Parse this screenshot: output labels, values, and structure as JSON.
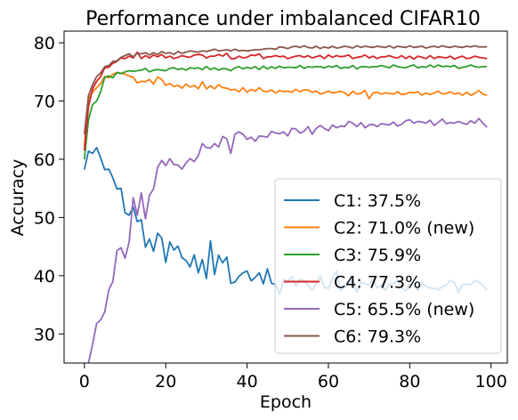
{
  "chart_data": {
    "type": "line",
    "title": "Performance under imbalanced CIFAR10",
    "xlabel": "Epoch",
    "ylabel": "Accuracy",
    "xlim": [
      -5,
      104
    ],
    "ylim": [
      25,
      82
    ],
    "xticks": [
      0,
      20,
      40,
      60,
      80,
      100
    ],
    "yticks": [
      30,
      40,
      50,
      60,
      70,
      80
    ],
    "grid": false,
    "legend_position": "lower-right",
    "x": [
      0,
      1,
      2,
      3,
      4,
      5,
      6,
      7,
      8,
      9,
      10,
      11,
      12,
      13,
      14,
      15,
      16,
      17,
      18,
      19,
      20,
      21,
      22,
      23,
      24,
      25,
      26,
      27,
      28,
      29,
      30,
      31,
      32,
      33,
      34,
      35,
      36,
      37,
      38,
      39,
      40,
      41,
      42,
      43,
      44,
      45,
      46,
      47,
      48,
      49,
      50,
      51,
      52,
      53,
      54,
      55,
      56,
      57,
      58,
      59,
      60,
      61,
      62,
      63,
      64,
      65,
      66,
      67,
      68,
      69,
      70,
      71,
      72,
      73,
      74,
      75,
      76,
      77,
      78,
      79,
      80,
      81,
      82,
      83,
      84,
      85,
      86,
      87,
      88,
      89,
      90,
      91,
      92,
      93,
      94,
      95,
      96,
      97,
      98,
      99
    ],
    "series": [
      {
        "name": "C1: 37.5%",
        "color": "#1f77b4",
        "values": [
          58.2,
          61.4,
          61.0,
          62.0,
          60.2,
          58.2,
          58.3,
          56.8,
          54.9,
          55.0,
          50.8,
          50.4,
          51.8,
          49.3,
          49.6,
          44.9,
          46.3,
          44.2,
          47.3,
          46.5,
          42.3,
          45.8,
          44.4,
          45.1,
          43.1,
          42.6,
          41.5,
          43.6,
          40.5,
          42.8,
          39.5,
          46.0,
          40.2,
          43.5,
          42.2,
          43.2,
          38.7,
          38.9,
          39.9,
          40.5,
          40.8,
          39.1,
          39.7,
          40.5,
          38.6,
          41.2,
          38.7,
          38.5,
          36.8,
          39.3,
          39.1,
          39.8,
          38.2,
          39.4,
          39.2,
          38.4,
          37.5,
          38.7,
          39.9,
          38.0,
          37.8,
          39.5,
          40.8,
          37.4,
          38.1,
          38.7,
          39.2,
          37.1,
          38.9,
          38.6,
          38.4,
          39.4,
          37.9,
          38.4,
          37.5,
          38.5,
          38.6,
          39.3,
          38.0,
          37.4,
          38.6,
          38.6,
          37.5,
          38.8,
          38.2,
          37.9,
          37.8,
          37.6,
          38.1,
          38.4,
          39.2,
          38.8,
          37.1,
          38.6,
          38.5,
          38.5,
          39.2,
          38.9,
          38.3,
          37.5
        ]
      },
      {
        "name": "C2: 71.0% (new)",
        "color": "#ff7f0e",
        "values": [
          62.2,
          70.4,
          71.5,
          72.3,
          73.0,
          74.2,
          74.0,
          74.6,
          74.9,
          74.8,
          74.6,
          74.3,
          74.1,
          73.1,
          73.4,
          73.3,
          73.7,
          72.9,
          74.1,
          73.7,
          72.7,
          73.0,
          72.5,
          72.7,
          72.2,
          72.9,
          72.4,
          72.7,
          72.1,
          73.3,
          72.1,
          72.6,
          72.1,
          72.8,
          72.3,
          72.2,
          71.9,
          72.0,
          71.6,
          72.3,
          71.5,
          72.0,
          71.7,
          72.3,
          71.7,
          71.6,
          71.9,
          71.4,
          71.8,
          71.6,
          71.7,
          71.5,
          72.0,
          71.6,
          71.9,
          71.9,
          71.5,
          71.7,
          71.2,
          71.4,
          71.7,
          71.4,
          71.5,
          71.7,
          71.4,
          70.9,
          71.7,
          71.2,
          71.3,
          71.8,
          70.4,
          71.4,
          71.5,
          71.2,
          71.4,
          71.3,
          71.2,
          71.6,
          71.1,
          71.2,
          71.5,
          71.4,
          71.6,
          71.0,
          71.4,
          71.1,
          71.4,
          71.7,
          71.2,
          71.3,
          71.6,
          71.2,
          71.4,
          71.0,
          71.5,
          71.0,
          71.3,
          71.8,
          71.2,
          71.0
        ]
      },
      {
        "name": "C3: 75.9%",
        "color": "#2ca02c",
        "values": [
          60.0,
          66.8,
          69.4,
          70.0,
          71.6,
          74.1,
          74.3,
          74.0,
          74.9,
          74.7,
          75.0,
          75.2,
          75.1,
          75.2,
          75.3,
          75.6,
          75.0,
          75.3,
          75.4,
          75.3,
          75.2,
          75.6,
          75.7,
          75.4,
          75.6,
          75.3,
          75.7,
          75.6,
          75.7,
          75.4,
          75.9,
          75.4,
          75.7,
          75.3,
          75.6,
          75.5,
          75.2,
          75.7,
          75.9,
          75.5,
          75.8,
          75.6,
          75.9,
          75.4,
          76.0,
          75.5,
          75.9,
          75.6,
          76.0,
          75.7,
          75.8,
          75.8,
          75.7,
          76.1,
          75.6,
          75.9,
          75.8,
          75.9,
          75.9,
          75.7,
          76.0,
          75.8,
          76.1,
          75.6,
          75.8,
          75.7,
          76.1,
          75.5,
          75.9,
          75.9,
          75.8,
          75.9,
          75.9,
          76.1,
          75.9,
          75.7,
          76.2,
          75.9,
          75.8,
          75.7,
          76.0,
          76.2,
          75.7,
          75.9,
          75.8,
          76.2,
          75.8,
          76.2,
          75.9,
          76.0,
          75.9,
          76.1,
          75.6,
          75.8,
          75.9,
          76.2,
          75.9,
          75.8,
          75.9,
          75.9
        ]
      },
      {
        "name": "C4: 77.3%",
        "color": "#d62728",
        "values": [
          61.5,
          69.0,
          72.1,
          73.4,
          74.2,
          75.7,
          75.8,
          76.5,
          76.8,
          77.4,
          77.3,
          77.7,
          77.4,
          78.4,
          77.3,
          77.8,
          77.4,
          77.9,
          77.6,
          78.0,
          77.4,
          77.7,
          77.3,
          77.5,
          77.8,
          77.6,
          77.5,
          77.9,
          78.0,
          77.9,
          77.4,
          77.7,
          77.7,
          78.0,
          77.7,
          78.2,
          77.3,
          77.3,
          77.7,
          77.4,
          77.5,
          77.9,
          77.8,
          78.1,
          77.3,
          77.6,
          77.6,
          77.8,
          77.6,
          77.7,
          77.3,
          77.5,
          77.7,
          77.8,
          77.5,
          77.8,
          77.4,
          77.6,
          77.8,
          77.3,
          77.9,
          77.5,
          77.8,
          77.6,
          77.7,
          77.9,
          77.3,
          77.5,
          77.6,
          77.9,
          77.4,
          77.7,
          77.3,
          77.6,
          77.6,
          77.8,
          77.5,
          77.4,
          77.8,
          77.3,
          77.7,
          77.2,
          77.7,
          77.5,
          77.3,
          77.8,
          77.3,
          77.6,
          77.5,
          77.4,
          77.7,
          77.2,
          77.5,
          77.7,
          77.3,
          77.4,
          77.7,
          77.5,
          77.4,
          77.3
        ]
      },
      {
        "name": "C5: 65.5% (new)",
        "color": "#9467bd",
        "values": [
          24.0,
          25.0,
          28.2,
          31.8,
          32.4,
          33.8,
          37.6,
          39.0,
          44.3,
          44.8,
          43.0,
          45.8,
          53.4,
          50.4,
          54.2,
          49.8,
          53.8,
          54.9,
          58.6,
          59.8,
          58.9,
          60.1,
          59.1,
          59.0,
          58.3,
          59.4,
          60.1,
          59.6,
          60.6,
          62.7,
          62.0,
          61.9,
          62.7,
          62.1,
          63.9,
          63.5,
          61.0,
          64.3,
          64.7,
          64.3,
          63.4,
          63.8,
          63.1,
          64.0,
          63.9,
          63.8,
          64.8,
          64.5,
          64.4,
          64.7,
          64.0,
          65.3,
          65.2,
          64.5,
          64.8,
          65.6,
          64.3,
          65.3,
          65.8,
          65.3,
          64.9,
          65.9,
          65.4,
          65.7,
          65.6,
          66.5,
          66.2,
          65.6,
          66.3,
          65.4,
          65.9,
          66.0,
          65.6,
          66.1,
          66.0,
          65.9,
          66.4,
          65.7,
          66.0,
          66.6,
          66.8,
          66.2,
          66.5,
          66.4,
          66.2,
          66.7,
          65.8,
          66.3,
          66.9,
          66.1,
          66.3,
          66.2,
          66.5,
          66.2,
          66.0,
          66.6,
          66.2,
          67.0,
          66.2,
          65.5
        ]
      },
      {
        "name": "C6: 79.3%",
        "color": "#8c564b",
        "values": [
          64.3,
          70.9,
          72.8,
          74.2,
          74.8,
          75.9,
          76.1,
          76.8,
          76.9,
          77.5,
          77.8,
          78.1,
          77.6,
          78.2,
          78.1,
          78.3,
          77.9,
          78.3,
          78.0,
          78.5,
          78.2,
          78.3,
          78.0,
          78.5,
          78.2,
          78.4,
          78.6,
          78.5,
          78.4,
          78.6,
          78.5,
          78.7,
          78.9,
          78.6,
          78.7,
          78.8,
          78.6,
          78.9,
          78.6,
          78.7,
          78.6,
          78.7,
          78.8,
          78.8,
          78.9,
          79.0,
          79.0,
          78.9,
          79.3,
          79.2,
          79.0,
          79.3,
          79.4,
          79.2,
          79.5,
          79.2,
          79.1,
          79.4,
          79.0,
          79.3,
          79.1,
          79.4,
          79.1,
          79.2,
          79.4,
          79.3,
          79.1,
          79.5,
          79.2,
          79.4,
          79.3,
          79.2,
          79.4,
          79.3,
          79.2,
          79.5,
          79.1,
          79.4,
          79.3,
          79.2,
          79.5,
          79.2,
          79.3,
          79.4,
          79.1,
          79.3,
          79.4,
          79.2,
          79.5,
          79.3,
          79.2,
          79.4,
          79.3,
          79.2,
          79.4,
          79.3,
          79.5,
          79.3,
          79.3,
          79.3
        ]
      }
    ]
  }
}
